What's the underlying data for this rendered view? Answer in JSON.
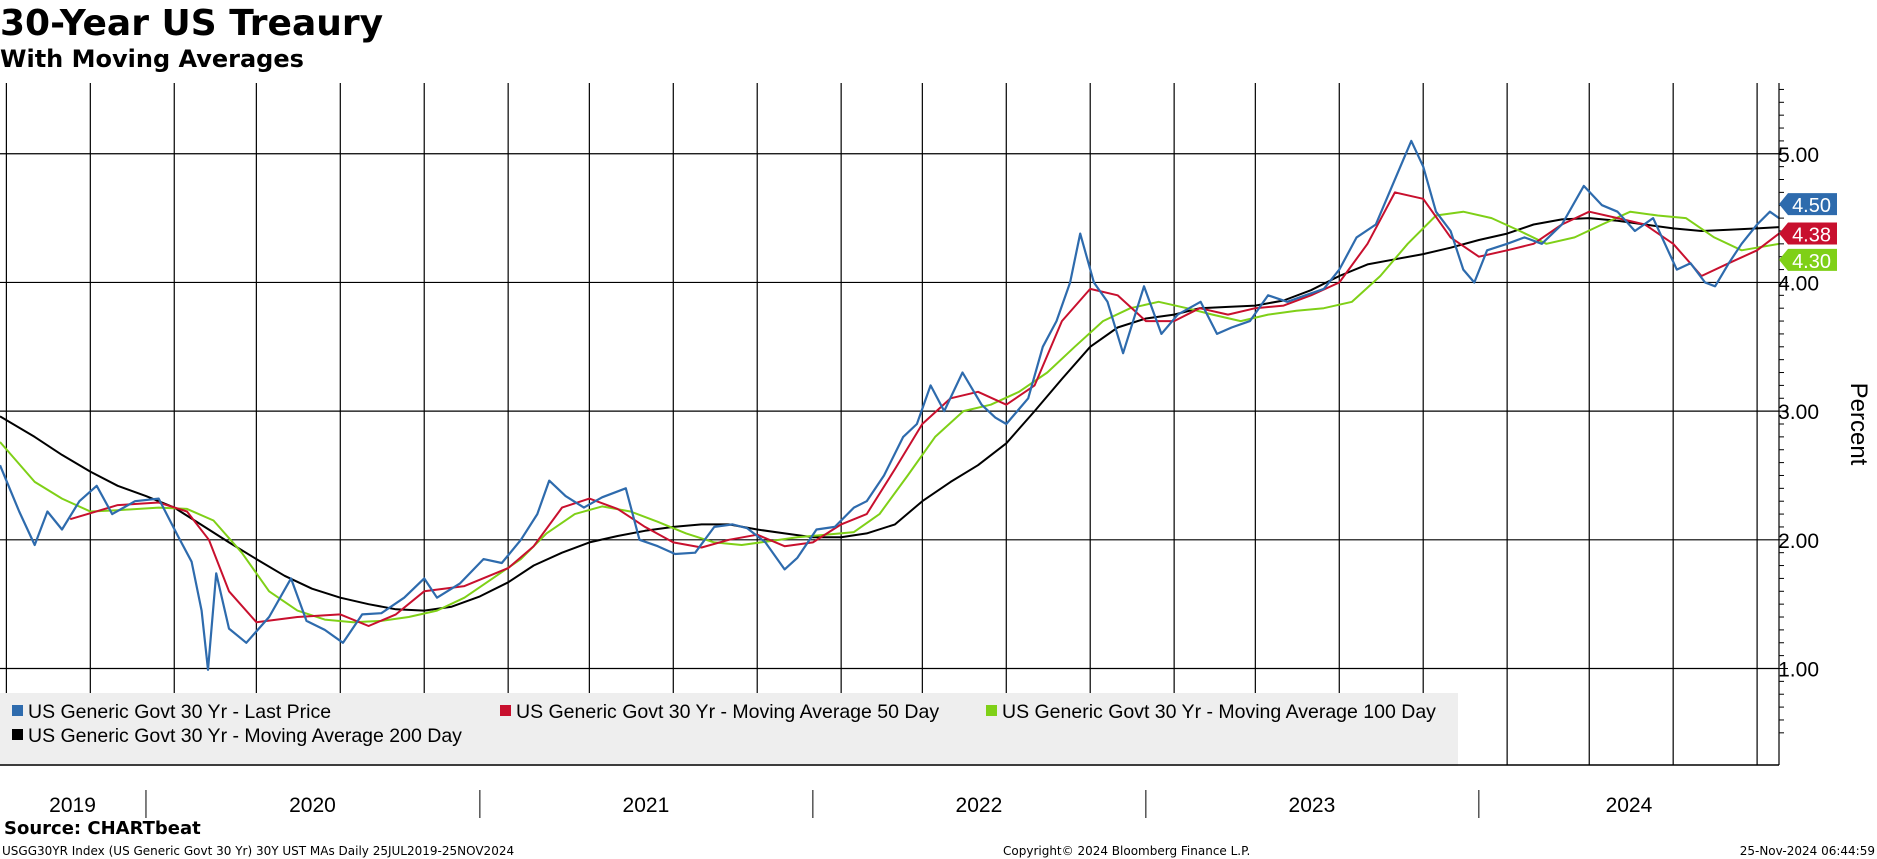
{
  "title": "30-Year US Treaury",
  "subtitle": "With Moving Averages",
  "source": "Source: CHARTbeat",
  "footer": {
    "left": "USGG30YR Index (US Generic Govt 30 Yr) 30Y UST MAs  Daily 25JUL2019-25NOV2024",
    "center": "Copyright© 2024 Bloomberg Finance L.P.",
    "right": "25-Nov-2024 06:44:59"
  },
  "chart_data": {
    "type": "line",
    "title": "30-Year US Treaury",
    "subtitle": "With Moving Averages",
    "ylabel": "Percent",
    "ylim": [
      0.25,
      5.55
    ],
    "yticks": [
      {
        "value": 1.0,
        "label": "1.00"
      },
      {
        "value": 2.0,
        "label": "2.00"
      },
      {
        "value": 3.0,
        "label": "3.00"
      },
      {
        "value": 4.0,
        "label": "4.00"
      },
      {
        "value": 5.0,
        "label": "5.00"
      }
    ],
    "xlim": [
      "2019-07-25",
      "2024-11-25"
    ],
    "year_labels": [
      {
        "label": "2019",
        "date": "2019-07-25",
        "end": "2019-12-31"
      },
      {
        "label": "2020",
        "date": "2020-01-01",
        "end": "2020-12-31"
      },
      {
        "label": "2021",
        "date": "2021-01-01",
        "end": "2021-12-31"
      },
      {
        "label": "2022",
        "date": "2022-01-01",
        "end": "2022-12-31"
      },
      {
        "label": "2023",
        "date": "2023-01-01",
        "end": "2023-12-31"
      },
      {
        "label": "2024",
        "date": "2024-01-01",
        "end": "2024-11-25"
      }
    ],
    "vertical_gridlines": [
      "2019-08-01",
      "2019-11-01",
      "2020-02-01",
      "2020-05-01",
      "2020-08-01",
      "2020-11-01",
      "2021-02-01",
      "2021-05-01",
      "2021-08-01",
      "2021-11-01",
      "2022-02-01",
      "2022-05-01",
      "2022-08-01",
      "2022-11-01",
      "2023-02-01",
      "2023-05-01",
      "2023-08-01",
      "2023-11-01",
      "2024-02-01",
      "2024-05-01",
      "2024-08-01",
      "2024-11-01"
    ],
    "grid": true,
    "legend_position": "bottom-left",
    "series": [
      {
        "name": "US Generic Govt 30 Yr - Last Price",
        "color": "#2E6BAD",
        "last_value": "4.50",
        "x": [
          "2019-07-25",
          "2019-08-15",
          "2019-09-01",
          "2019-09-15",
          "2019-10-01",
          "2019-10-20",
          "2019-11-08",
          "2019-11-25",
          "2019-12-20",
          "2020-01-15",
          "2020-02-05",
          "2020-02-20",
          "2020-03-02",
          "2020-03-09",
          "2020-03-18",
          "2020-04-01",
          "2020-04-20",
          "2020-05-15",
          "2020-06-08",
          "2020-06-25",
          "2020-07-15",
          "2020-08-04",
          "2020-08-25",
          "2020-09-15",
          "2020-10-10",
          "2020-11-01",
          "2020-11-15",
          "2020-12-10",
          "2021-01-05",
          "2021-01-25",
          "2021-02-15",
          "2021-03-05",
          "2021-03-18",
          "2021-04-05",
          "2021-04-25",
          "2021-05-15",
          "2021-06-10",
          "2021-06-25",
          "2021-07-15",
          "2021-08-03",
          "2021-08-25",
          "2021-09-15",
          "2021-10-05",
          "2021-10-21",
          "2021-11-10",
          "2021-12-01",
          "2021-12-15",
          "2022-01-05",
          "2022-01-25",
          "2022-02-15",
          "2022-03-01",
          "2022-03-20",
          "2022-04-10",
          "2022-04-25",
          "2022-05-10",
          "2022-05-25",
          "2022-06-14",
          "2022-07-05",
          "2022-07-20",
          "2022-08-01",
          "2022-08-25",
          "2022-09-10",
          "2022-09-25",
          "2022-10-10",
          "2022-10-21",
          "2022-11-05",
          "2022-11-20",
          "2022-12-07",
          "2022-12-30",
          "2023-01-18",
          "2023-02-05",
          "2023-03-02",
          "2023-03-20",
          "2023-04-05",
          "2023-04-25",
          "2023-05-15",
          "2023-06-05",
          "2023-06-25",
          "2023-07-15",
          "2023-08-01",
          "2023-08-20",
          "2023-09-10",
          "2023-09-25",
          "2023-10-10",
          "2023-10-19",
          "2023-11-01",
          "2023-11-15",
          "2023-12-01",
          "2023-12-15",
          "2023-12-27",
          "2024-01-10",
          "2024-02-01",
          "2024-02-20",
          "2024-03-10",
          "2024-04-01",
          "2024-04-25",
          "2024-05-15",
          "2024-06-01",
          "2024-06-20",
          "2024-07-10",
          "2024-08-05",
          "2024-08-20",
          "2024-09-05",
          "2024-09-16",
          "2024-10-01",
          "2024-10-15",
          "2024-11-01",
          "2024-11-15",
          "2024-11-25"
        ],
        "values": [
          2.58,
          2.22,
          1.96,
          2.22,
          2.08,
          2.3,
          2.42,
          2.2,
          2.3,
          2.32,
          2.03,
          1.83,
          1.45,
          0.99,
          1.74,
          1.31,
          1.2,
          1.4,
          1.7,
          1.37,
          1.3,
          1.2,
          1.42,
          1.43,
          1.55,
          1.7,
          1.55,
          1.66,
          1.85,
          1.82,
          2.0,
          2.2,
          2.46,
          2.34,
          2.25,
          2.33,
          2.4,
          2.0,
          1.95,
          1.89,
          1.9,
          2.1,
          2.12,
          2.09,
          1.98,
          1.77,
          1.86,
          2.08,
          2.1,
          2.25,
          2.3,
          2.5,
          2.8,
          2.9,
          3.2,
          3.0,
          3.3,
          3.05,
          2.95,
          2.9,
          3.1,
          3.5,
          3.7,
          4.0,
          4.38,
          4.0,
          3.85,
          3.45,
          3.97,
          3.6,
          3.75,
          3.85,
          3.6,
          3.65,
          3.7,
          3.9,
          3.85,
          3.9,
          3.95,
          4.1,
          4.35,
          4.45,
          4.7,
          4.95,
          5.1,
          4.9,
          4.55,
          4.4,
          4.1,
          4.0,
          4.25,
          4.3,
          4.35,
          4.3,
          4.45,
          4.75,
          4.6,
          4.55,
          4.4,
          4.5,
          4.1,
          4.15,
          4.0,
          3.97,
          4.15,
          4.3,
          4.45,
          4.55,
          4.5
        ]
      },
      {
        "name": "US Generic Govt 30 Yr - Moving Average 50 Day",
        "color": "#C8102E",
        "last_value": "4.38",
        "x": [
          "2019-10-10",
          "2019-12-01",
          "2020-01-15",
          "2020-02-15",
          "2020-03-10",
          "2020-04-01",
          "2020-05-01",
          "2020-06-15",
          "2020-08-01",
          "2020-09-01",
          "2020-10-01",
          "2020-11-01",
          "2020-12-15",
          "2021-02-01",
          "2021-03-01",
          "2021-04-01",
          "2021-05-01",
          "2021-06-01",
          "2021-07-01",
          "2021-08-01",
          "2021-09-01",
          "2021-10-01",
          "2021-11-01",
          "2021-12-01",
          "2022-01-01",
          "2022-02-01",
          "2022-03-01",
          "2022-04-01",
          "2022-05-01",
          "2022-06-01",
          "2022-07-01",
          "2022-08-01",
          "2022-09-01",
          "2022-10-01",
          "2022-11-01",
          "2022-12-01",
          "2023-01-01",
          "2023-02-01",
          "2023-03-01",
          "2023-04-01",
          "2023-05-01",
          "2023-06-01",
          "2023-07-01",
          "2023-08-01",
          "2023-09-01",
          "2023-10-01",
          "2023-11-01",
          "2023-12-01",
          "2024-01-01",
          "2024-02-01",
          "2024-03-01",
          "2024-04-01",
          "2024-05-01",
          "2024-06-01",
          "2024-07-01",
          "2024-08-01",
          "2024-09-01",
          "2024-10-01",
          "2024-11-01",
          "2024-11-25"
        ],
        "values": [
          2.16,
          2.27,
          2.29,
          2.22,
          2.0,
          1.6,
          1.36,
          1.4,
          1.42,
          1.33,
          1.42,
          1.6,
          1.64,
          1.78,
          1.95,
          2.25,
          2.32,
          2.24,
          2.1,
          1.98,
          1.94,
          2.0,
          2.04,
          1.95,
          1.98,
          2.12,
          2.2,
          2.55,
          2.9,
          3.1,
          3.15,
          3.05,
          3.2,
          3.7,
          3.95,
          3.9,
          3.7,
          3.7,
          3.8,
          3.75,
          3.8,
          3.82,
          3.9,
          4.0,
          4.3,
          4.7,
          4.65,
          4.35,
          4.2,
          4.25,
          4.3,
          4.45,
          4.55,
          4.5,
          4.45,
          4.3,
          4.05,
          4.15,
          4.25,
          4.38
        ]
      },
      {
        "name": "US Generic Govt 30 Yr - Moving Average 100 Day",
        "color": "#7FD017",
        "last_value": "4.30",
        "x": [
          "2019-07-25",
          "2019-09-01",
          "2019-10-01",
          "2019-11-01",
          "2019-12-01",
          "2020-01-15",
          "2020-02-15",
          "2020-03-15",
          "2020-04-15",
          "2020-05-15",
          "2020-06-15",
          "2020-07-15",
          "2020-08-15",
          "2020-09-15",
          "2020-10-15",
          "2020-11-15",
          "2020-12-15",
          "2021-01-15",
          "2021-02-15",
          "2021-03-15",
          "2021-04-15",
          "2021-05-15",
          "2021-06-15",
          "2021-07-15",
          "2021-08-15",
          "2021-09-15",
          "2021-10-15",
          "2021-11-15",
          "2021-12-15",
          "2022-01-15",
          "2022-02-15",
          "2022-03-15",
          "2022-04-15",
          "2022-05-15",
          "2022-06-15",
          "2022-07-15",
          "2022-08-15",
          "2022-09-15",
          "2022-10-15",
          "2022-11-15",
          "2022-12-15",
          "2023-01-15",
          "2023-02-15",
          "2023-03-15",
          "2023-04-15",
          "2023-05-15",
          "2023-06-15",
          "2023-07-15",
          "2023-08-15",
          "2023-09-15",
          "2023-10-15",
          "2023-11-15",
          "2023-12-15",
          "2024-01-15",
          "2024-02-15",
          "2024-03-15",
          "2024-04-15",
          "2024-05-15",
          "2024-06-15",
          "2024-07-15",
          "2024-08-15",
          "2024-09-15",
          "2024-10-15",
          "2024-11-25"
        ],
        "values": [
          2.76,
          2.45,
          2.32,
          2.22,
          2.23,
          2.25,
          2.24,
          2.15,
          1.9,
          1.6,
          1.45,
          1.38,
          1.36,
          1.37,
          1.4,
          1.45,
          1.55,
          1.7,
          1.85,
          2.05,
          2.2,
          2.26,
          2.22,
          2.14,
          2.05,
          1.98,
          1.96,
          1.99,
          2.02,
          2.04,
          2.06,
          2.2,
          2.5,
          2.8,
          3.0,
          3.05,
          3.15,
          3.3,
          3.5,
          3.7,
          3.8,
          3.85,
          3.8,
          3.75,
          3.7,
          3.75,
          3.78,
          3.8,
          3.85,
          4.05,
          4.3,
          4.52,
          4.55,
          4.5,
          4.4,
          4.3,
          4.35,
          4.45,
          4.55,
          4.52,
          4.5,
          4.35,
          4.25,
          4.3
        ]
      },
      {
        "name": "US Generic Govt 30 Yr - Moving Average 200 Day",
        "color": "#000000",
        "last_value": "",
        "x": [
          "2019-07-25",
          "2019-09-01",
          "2019-10-01",
          "2019-11-01",
          "2019-12-01",
          "2020-01-01",
          "2020-02-01",
          "2020-03-01",
          "2020-04-01",
          "2020-05-01",
          "2020-06-01",
          "2020-07-01",
          "2020-08-01",
          "2020-09-01",
          "2020-10-01",
          "2020-11-01",
          "2020-12-01",
          "2021-01-01",
          "2021-02-01",
          "2021-03-01",
          "2021-04-01",
          "2021-05-01",
          "2021-06-01",
          "2021-07-01",
          "2021-08-01",
          "2021-09-01",
          "2021-10-01",
          "2021-11-01",
          "2021-12-01",
          "2022-01-01",
          "2022-02-01",
          "2022-03-01",
          "2022-04-01",
          "2022-05-01",
          "2022-06-01",
          "2022-07-01",
          "2022-08-01",
          "2022-09-01",
          "2022-10-01",
          "2022-11-01",
          "2022-12-01",
          "2023-01-01",
          "2023-02-01",
          "2023-03-01",
          "2023-04-01",
          "2023-05-01",
          "2023-06-01",
          "2023-07-01",
          "2023-08-01",
          "2023-09-01",
          "2023-10-01",
          "2023-11-01",
          "2023-12-01",
          "2024-01-01",
          "2024-02-01",
          "2024-03-01",
          "2024-04-01",
          "2024-05-01",
          "2024-06-01",
          "2024-07-01",
          "2024-08-01",
          "2024-09-01",
          "2024-10-01",
          "2024-11-01",
          "2024-11-25"
        ],
        "values": [
          2.96,
          2.8,
          2.66,
          2.53,
          2.42,
          2.34,
          2.25,
          2.12,
          1.98,
          1.85,
          1.72,
          1.62,
          1.55,
          1.5,
          1.46,
          1.45,
          1.48,
          1.56,
          1.67,
          1.8,
          1.9,
          1.98,
          2.03,
          2.07,
          2.1,
          2.12,
          2.12,
          2.08,
          2.05,
          2.02,
          2.02,
          2.05,
          2.12,
          2.3,
          2.45,
          2.58,
          2.75,
          3.0,
          3.25,
          3.5,
          3.65,
          3.72,
          3.75,
          3.8,
          3.81,
          3.82,
          3.86,
          3.94,
          4.05,
          4.14,
          4.18,
          4.22,
          4.27,
          4.33,
          4.38,
          4.45,
          4.49,
          4.5,
          4.48,
          4.45,
          4.42,
          4.4,
          4.41,
          4.42,
          4.43
        ]
      }
    ]
  }
}
